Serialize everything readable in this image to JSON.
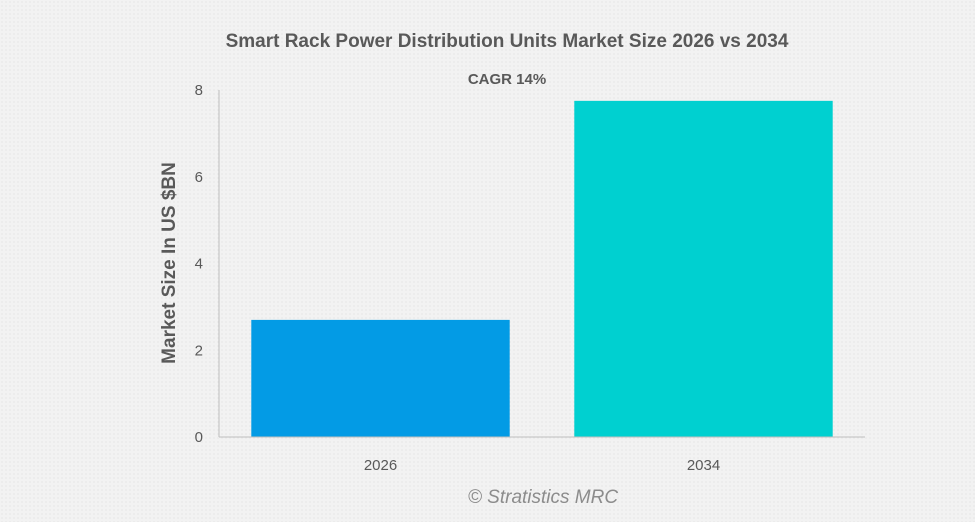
{
  "chart_data": {
    "type": "bar",
    "title": "Smart Rack Power Distribution Units Market Size 2026 vs 2034",
    "subtitle": "CAGR 14%",
    "xlabel": "",
    "ylabel": "Market Size In US $BN",
    "categories": [
      "2026",
      "2034"
    ],
    "values": [
      2.7,
      7.75
    ],
    "colors": [
      "#039be5",
      "#00d0d0"
    ],
    "ylim": [
      0,
      8
    ],
    "yticks": [
      "0",
      "2",
      "4",
      "6",
      "8"
    ],
    "grid": false,
    "legend": "none"
  },
  "watermark": "© Stratistics MRC"
}
